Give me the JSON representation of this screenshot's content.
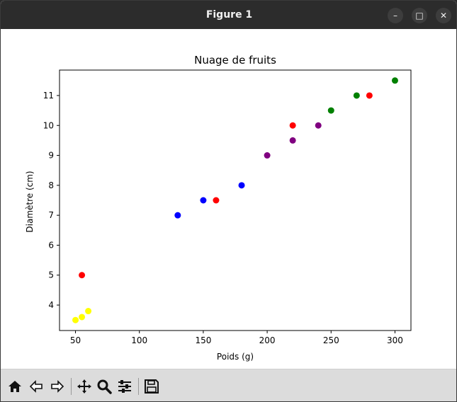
{
  "window": {
    "title": "Figure 1"
  },
  "toolbar": {
    "icons": [
      "home-icon",
      "back-icon",
      "forward-icon",
      "pan-icon",
      "zoom-icon",
      "configure-subplots-icon",
      "save-icon"
    ]
  },
  "chart_data": {
    "type": "scatter",
    "title": "Nuage de fruits",
    "xlabel": "Poids (g)",
    "ylabel": "Diamètre (cm)",
    "xlim": [
      37.5,
      312.5
    ],
    "ylim": [
      3.15,
      11.85
    ],
    "xticks": [
      50,
      100,
      150,
      200,
      250,
      300
    ],
    "yticks": [
      4,
      5,
      6,
      7,
      8,
      9,
      10,
      11
    ],
    "grid": false,
    "points": [
      {
        "x": 50,
        "y": 3.5,
        "color": "#ffff00"
      },
      {
        "x": 55,
        "y": 3.6,
        "color": "#ffff00"
      },
      {
        "x": 60,
        "y": 3.8,
        "color": "#ffff00"
      },
      {
        "x": 55,
        "y": 5.0,
        "color": "#ff0000"
      },
      {
        "x": 130,
        "y": 7.0,
        "color": "#0000ff"
      },
      {
        "x": 150,
        "y": 7.5,
        "color": "#0000ff"
      },
      {
        "x": 160,
        "y": 7.5,
        "color": "#ff0000"
      },
      {
        "x": 180,
        "y": 8.0,
        "color": "#0000ff"
      },
      {
        "x": 200,
        "y": 9.0,
        "color": "#800080"
      },
      {
        "x": 220,
        "y": 9.5,
        "color": "#800080"
      },
      {
        "x": 220,
        "y": 10.0,
        "color": "#ff0000"
      },
      {
        "x": 240,
        "y": 10.0,
        "color": "#800080"
      },
      {
        "x": 250,
        "y": 10.5,
        "color": "#008000"
      },
      {
        "x": 270,
        "y": 11.0,
        "color": "#008000"
      },
      {
        "x": 280,
        "y": 11.0,
        "color": "#ff0000"
      },
      {
        "x": 300,
        "y": 11.5,
        "color": "#008000"
      }
    ]
  }
}
